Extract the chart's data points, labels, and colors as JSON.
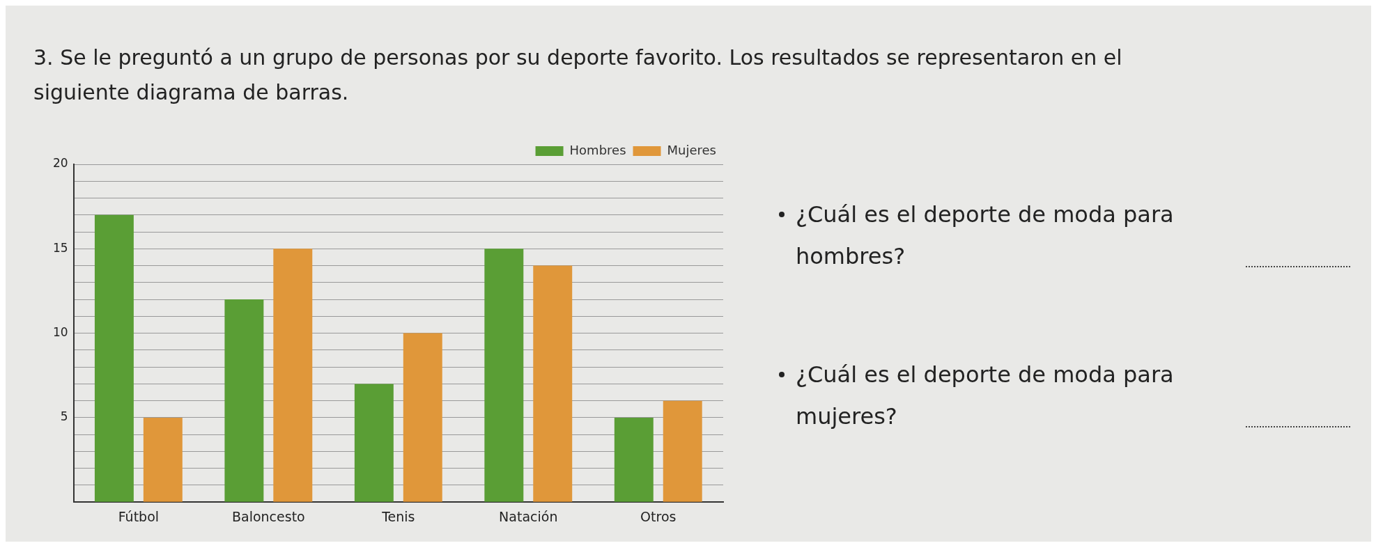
{
  "chart_data": {
    "type": "bar",
    "title": "3. Se le preguntó a un grupo de personas por su deporte favorito. Los resultados se representaron en el siguiente diagrama de barras.",
    "categories": [
      "Fútbol",
      "Baloncesto",
      "Tenis",
      "Natación",
      "Otros"
    ],
    "series": [
      {
        "name": "Hombres",
        "color": "#5a9e35",
        "values": [
          17,
          12,
          7,
          15,
          5
        ]
      },
      {
        "name": "Mujeres",
        "color": "#e0973a",
        "values": [
          5,
          15,
          10,
          14,
          6
        ]
      }
    ],
    "ylim": [
      0,
      20
    ],
    "yticks": [
      {
        "value": 0,
        "label": null
      },
      {
        "value": 1,
        "label": null
      },
      {
        "value": 2,
        "label": null
      },
      {
        "value": 3,
        "label": null
      },
      {
        "value": 4,
        "label": null
      },
      5,
      {
        "value": 6,
        "label": null
      },
      {
        "value": 7,
        "label": null
      },
      {
        "value": 8,
        "label": null
      },
      {
        "value": 9,
        "label": null
      },
      10,
      {
        "value": 11,
        "label": null
      },
      {
        "value": 12,
        "label": null
      },
      {
        "value": 13,
        "label": null
      },
      {
        "value": 14,
        "label": null
      },
      15,
      {
        "value": 16,
        "label": null
      },
      {
        "value": 17,
        "label": null
      },
      {
        "value": 18,
        "label": null
      },
      {
        "value": 19,
        "label": null
      },
      20
    ],
    "grid": "y",
    "legend": "top",
    "annotations": [
      "¿Cuál es el deporte de moda para hombres?",
      "¿Cuál es el deporte de moda para mujeres?"
    ]
  }
}
